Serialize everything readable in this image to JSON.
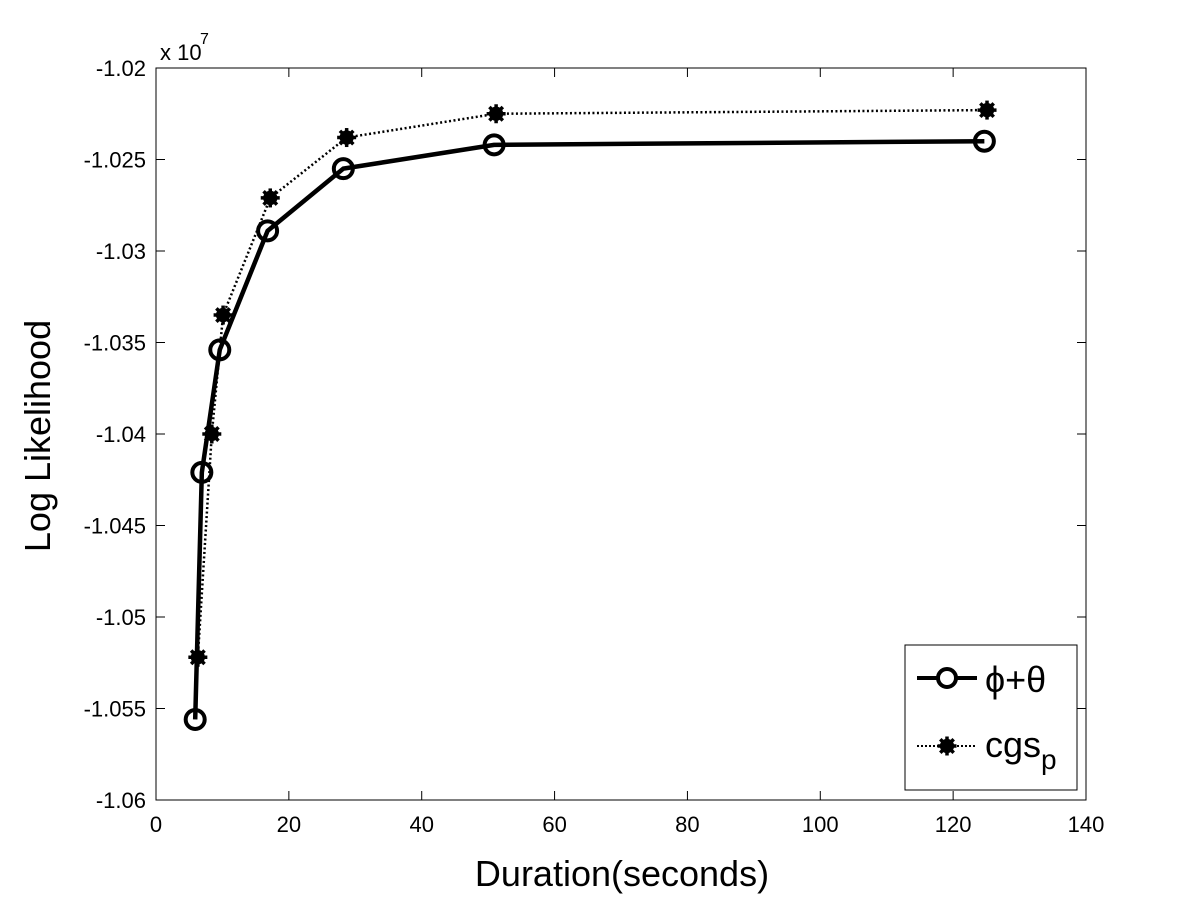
{
  "chart_data": {
    "type": "line",
    "xlabel": "Duration(seconds)",
    "ylabel": "Log Likelihood",
    "xlim": [
      0,
      140
    ],
    "ylim": [
      -1.06,
      -1.02
    ],
    "x_ticks": [
      0,
      20,
      40,
      60,
      80,
      100,
      120,
      140
    ],
    "y_ticks": [
      -1.06,
      -1.055,
      -1.05,
      -1.045,
      -1.04,
      -1.035,
      -1.03,
      -1.025,
      -1.02
    ],
    "x_tick_labels": [
      "0",
      "20",
      "40",
      "60",
      "80",
      "100",
      "120",
      "140"
    ],
    "y_tick_labels": [
      "-1.06",
      "-1.055",
      "-1.05",
      "-1.045",
      "-1.04",
      "-1.035",
      "-1.03",
      "-1.025",
      "-1.02"
    ],
    "y_scale_base": "x 10",
    "y_scale_exponent": "7",
    "grid": false,
    "legend_position": "bottom-right",
    "series": [
      {
        "name": "ϕ+θ",
        "color": "#000000",
        "style": "solid",
        "marker": "circle",
        "x": [
          5.9,
          6.9,
          9.6,
          16.8,
          28.2,
          50.9,
          124.7
        ],
        "y": [
          -1.0556,
          -1.0421,
          -1.0354,
          -1.0289,
          -1.0255,
          -1.0242,
          -1.024
        ]
      },
      {
        "name": "cgs",
        "name_subscript": "p",
        "color": "#000000",
        "style": "dotted",
        "marker": "asterisk",
        "x": [
          6.3,
          8.4,
          10.1,
          17.2,
          28.7,
          51.2,
          125.1
        ],
        "y": [
          -1.0522,
          -1.04,
          -1.0335,
          -1.0271,
          -1.0238,
          -1.0225,
          -1.0223
        ]
      }
    ]
  }
}
